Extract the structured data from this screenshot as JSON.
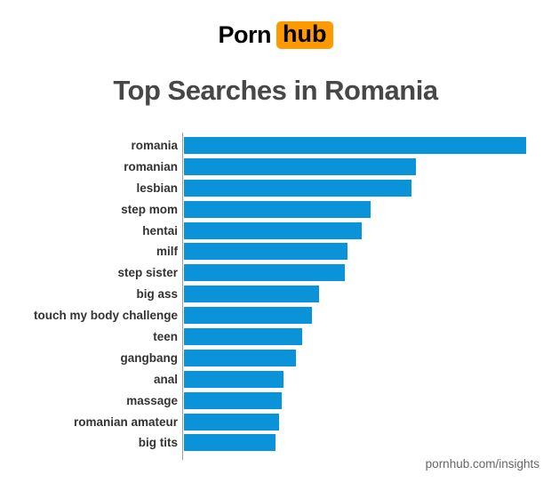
{
  "logo": {
    "porn": "Porn",
    "hub": "hub"
  },
  "title": "Top Searches in Romania",
  "footer": {
    "watermark": "pornhub.com/insights"
  },
  "colors": {
    "bar": "#0A93D9",
    "brand_orange": "#FF9900",
    "title": "#474747",
    "label": "#333333",
    "watermark": "#666666",
    "axis": "#9e9e9e"
  },
  "chart_data": {
    "type": "bar",
    "orientation": "horizontal",
    "title": "Top Searches in Romania",
    "categories": [
      "romania",
      "romanian",
      "lesbian",
      "step mom",
      "hentai",
      "milf",
      "step sister",
      "big ass",
      "touch my body challenge",
      "teen",
      "gangbang",
      "anal",
      "massage",
      "romanian amateur",
      "big tits"
    ],
    "values": [
      100,
      67.8,
      66.5,
      54.5,
      51.9,
      47.8,
      47.0,
      39.5,
      37.4,
      34.5,
      32.7,
      29.1,
      28.6,
      27.8,
      26.8
    ],
    "units": "relative search volume (longest bar = 100)",
    "xlim": [
      0,
      100
    ],
    "grid": false,
    "legend": false,
    "bar_color": "#0A93D9"
  }
}
